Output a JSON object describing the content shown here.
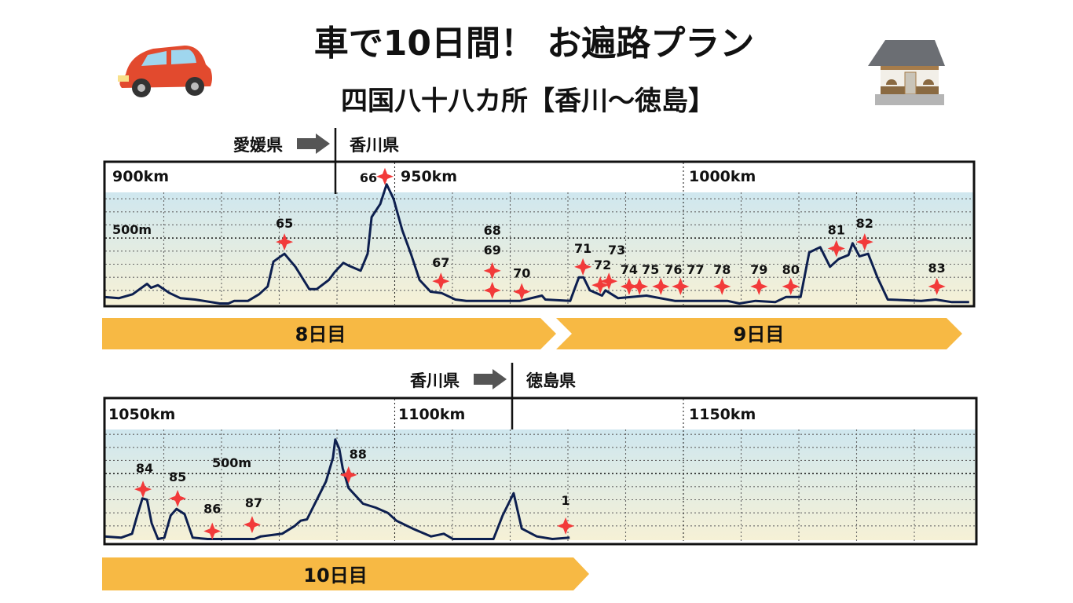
{
  "header": {
    "title": "車で10日間！ お遍路プラン",
    "subtitle": "四国八十八カ所【香川〜徳島】",
    "car_icon": "red-car-icon",
    "temple_icon": "temple-building-icon"
  },
  "colors": {
    "profile_line": "#0d1f4f",
    "temple_star": "#f23a3a",
    "day_banner": "#f7b944",
    "plot_top": "#cfe7ef",
    "plot_bottom": "#f6f1d6"
  },
  "chart_data": [
    {
      "type": "line",
      "title": "",
      "xlabel": "",
      "ylabel": "",
      "xlim": [
        900,
        1050
      ],
      "ylim": [
        0,
        850
      ],
      "x_tick_labels": [
        {
          "km": 900,
          "label": "900km"
        },
        {
          "km": 950,
          "label": "950km"
        },
        {
          "km": 1000,
          "label": "1000km"
        }
      ],
      "y_tick_label": {
        "m": 500,
        "label": "500m"
      },
      "grid": true,
      "prefecture_border": {
        "km": 939.7,
        "from": "愛媛県",
        "to": "香川県"
      },
      "days": [
        {
          "label": "8日目"
        },
        {
          "label": "9日目"
        }
      ],
      "profile": [
        [
          899.3,
          50
        ],
        [
          902.2,
          40
        ],
        [
          904.6,
          70
        ],
        [
          907.1,
          150
        ],
        [
          907.8,
          120
        ],
        [
          909.0,
          140
        ],
        [
          911.0,
          80
        ],
        [
          912.9,
          40
        ],
        [
          915.4,
          30
        ],
        [
          919.7,
          0
        ],
        [
          921.2,
          0
        ],
        [
          922.2,
          20
        ],
        [
          924.6,
          20
        ],
        [
          926.5,
          70
        ],
        [
          928.0,
          130
        ],
        [
          929.0,
          320
        ],
        [
          930.9,
          380
        ],
        [
          932.8,
          280
        ],
        [
          935.2,
          110
        ],
        [
          936.5,
          110
        ],
        [
          938.6,
          180
        ],
        [
          939.6,
          240
        ],
        [
          941.1,
          310
        ],
        [
          942.0,
          290
        ],
        [
          944.1,
          250
        ],
        [
          945.3,
          380
        ],
        [
          946.0,
          660
        ],
        [
          947.5,
          760
        ],
        [
          948.6,
          910
        ],
        [
          949.8,
          800
        ],
        [
          951.3,
          560
        ],
        [
          952.8,
          380
        ],
        [
          954.3,
          180
        ],
        [
          956.2,
          90
        ],
        [
          958.1,
          80
        ],
        [
          960.5,
          30
        ],
        [
          962.4,
          20
        ],
        [
          967.3,
          20
        ],
        [
          971.7,
          20
        ],
        [
          975.5,
          60
        ],
        [
          976.1,
          30
        ],
        [
          980.4,
          20
        ],
        [
          981.9,
          200
        ],
        [
          982.7,
          200
        ],
        [
          983.8,
          100
        ],
        [
          985.9,
          60
        ],
        [
          986.5,
          100
        ],
        [
          988.7,
          40
        ],
        [
          993.6,
          60
        ],
        [
          998.5,
          20
        ],
        [
          1006.3,
          20
        ],
        [
          1007.6,
          20
        ],
        [
          1009.7,
          0
        ],
        [
          1012.5,
          20
        ],
        [
          1015.9,
          10
        ],
        [
          1017.8,
          50
        ],
        [
          1020.3,
          50
        ],
        [
          1021.8,
          390
        ],
        [
          1023.7,
          430
        ],
        [
          1025.4,
          280
        ],
        [
          1026.9,
          340
        ],
        [
          1028.6,
          370
        ],
        [
          1029.3,
          460
        ],
        [
          1030.5,
          360
        ],
        [
          1032.0,
          380
        ],
        [
          1033.6,
          200
        ],
        [
          1035.4,
          30
        ],
        [
          1041.2,
          20
        ],
        [
          1043.7,
          30
        ],
        [
          1046.5,
          10
        ],
        [
          1049.5,
          10
        ]
      ],
      "temples": [
        {
          "num": "65",
          "km": 930.9,
          "m": 470
        },
        {
          "num": "66",
          "km": 948.3,
          "m": 970
        },
        {
          "num": "67",
          "km": 958.0,
          "m": 170
        },
        {
          "num": "68",
          "km": 966.9,
          "m": 250
        },
        {
          "num": "69",
          "km": 966.9,
          "m": 100
        },
        {
          "num": "70",
          "km": 972.0,
          "m": 90
        },
        {
          "num": "71",
          "km": 982.6,
          "m": 280
        },
        {
          "num": "72",
          "km": 985.6,
          "m": 140
        },
        {
          "num": "73",
          "km": 987.1,
          "m": 170
        },
        {
          "num": "74",
          "km": 990.6,
          "m": 130
        },
        {
          "num": "75",
          "km": 992.4,
          "m": 130
        },
        {
          "num": "76",
          "km": 996.1,
          "m": 130
        },
        {
          "num": "77",
          "km": 999.5,
          "m": 130
        },
        {
          "num": "78",
          "km": 1006.7,
          "m": 130
        },
        {
          "num": "79",
          "km": 1013.1,
          "m": 130
        },
        {
          "num": "80",
          "km": 1018.6,
          "m": 130
        },
        {
          "num": "81",
          "km": 1026.5,
          "m": 420
        },
        {
          "num": "82",
          "km": 1031.4,
          "m": 470
        },
        {
          "num": "83",
          "km": 1043.9,
          "m": 130
        }
      ]
    },
    {
      "type": "line",
      "title": "",
      "xlabel": "",
      "ylabel": "",
      "xlim": [
        1050,
        1200
      ],
      "ylim": [
        0,
        850
      ],
      "x_tick_labels": [
        {
          "km": 1050,
          "label": "1050km"
        },
        {
          "km": 1100,
          "label": "1100km"
        },
        {
          "km": 1150,
          "label": "1150km"
        }
      ],
      "y_tick_label": {
        "m": 500,
        "label": "500m"
      },
      "grid": true,
      "prefecture_border": {
        "km": 1120.3,
        "from": "香川県",
        "to": "徳島県"
      },
      "days": [
        {
          "label": "10日目"
        }
      ],
      "profile": [
        [
          1049.3,
          20
        ],
        [
          1052.6,
          10
        ],
        [
          1054.5,
          40
        ],
        [
          1055.4,
          180
        ],
        [
          1056.3,
          310
        ],
        [
          1057.1,
          300
        ],
        [
          1057.9,
          120
        ],
        [
          1059.0,
          0
        ],
        [
          1060.1,
          10
        ],
        [
          1061.2,
          180
        ],
        [
          1062.2,
          230
        ],
        [
          1063.6,
          190
        ],
        [
          1065.0,
          10
        ],
        [
          1067.6,
          0
        ],
        [
          1070.8,
          0
        ],
        [
          1072.4,
          0
        ],
        [
          1075.7,
          0
        ],
        [
          1076.8,
          20
        ],
        [
          1080.5,
          40
        ],
        [
          1082.7,
          100
        ],
        [
          1083.7,
          140
        ],
        [
          1084.8,
          150
        ],
        [
          1088.1,
          440
        ],
        [
          1089.3,
          620
        ],
        [
          1089.7,
          760
        ],
        [
          1090.4,
          690
        ],
        [
          1091.0,
          540
        ],
        [
          1092.0,
          390
        ],
        [
          1094.5,
          270
        ],
        [
          1096.7,
          240
        ],
        [
          1098.8,
          200
        ],
        [
          1100.3,
          140
        ],
        [
          1103.1,
          80
        ],
        [
          1106.3,
          20
        ],
        [
          1108.5,
          40
        ],
        [
          1110.1,
          0
        ],
        [
          1113.8,
          0
        ],
        [
          1117.1,
          0
        ],
        [
          1118.7,
          180
        ],
        [
          1120.6,
          350
        ],
        [
          1122.0,
          80
        ],
        [
          1124.6,
          20
        ],
        [
          1127.3,
          0
        ],
        [
          1130.3,
          10
        ]
      ],
      "temples": [
        {
          "num": "84",
          "km": 1056.4,
          "m": 380
        },
        {
          "num": "85",
          "km": 1062.4,
          "m": 310
        },
        {
          "num": "86",
          "km": 1068.4,
          "m": 60
        },
        {
          "num": "87",
          "km": 1075.3,
          "m": 110
        },
        {
          "num": "88",
          "km": 1092.0,
          "m": 490
        },
        {
          "num": "1",
          "km": 1129.6,
          "m": 100
        }
      ]
    }
  ]
}
